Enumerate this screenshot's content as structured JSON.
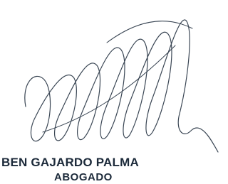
{
  "signer": {
    "name": "BEN GAJARDO PALMA",
    "role": "ABOGADO"
  }
}
